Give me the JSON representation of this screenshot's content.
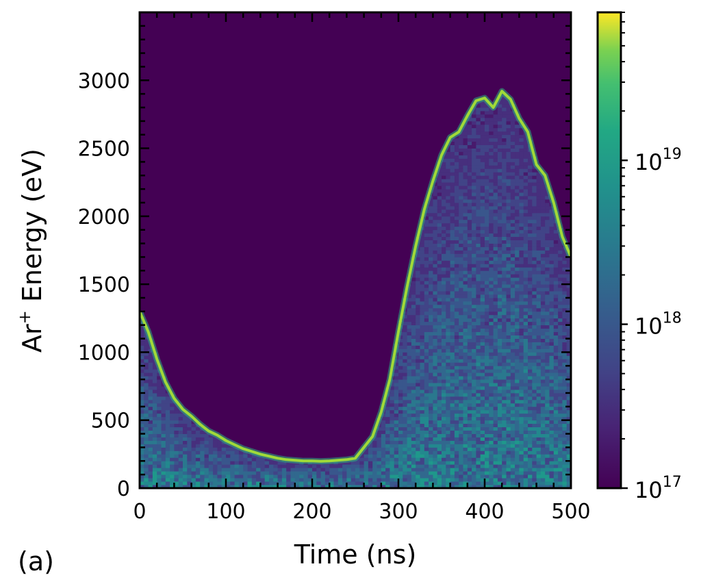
{
  "panel_label": "(a)",
  "chart_data": {
    "type": "heatmap",
    "title": "",
    "xlabel": "Time (ns)",
    "ylabel_base": "Ar",
    "ylabel_sup": "+",
    "ylabel_rest": " Energy (eV)",
    "xlim": [
      0,
      500
    ],
    "ylim": [
      0,
      3500
    ],
    "xticks": [
      0,
      100,
      200,
      300,
      400,
      500
    ],
    "yticks": [
      0,
      500,
      1000,
      1500,
      2000,
      2500,
      3000
    ],
    "xtick_labels": [
      "0",
      "100",
      "200",
      "300",
      "400",
      "500"
    ],
    "ytick_labels": [
      "0",
      "500",
      "1000",
      "1500",
      "2000",
      "2500",
      "3000"
    ],
    "colormap": "viridis",
    "color_scale": "log",
    "color_range": [
      1e+17,
      8e+19
    ],
    "colorbar_ticks": [
      {
        "value": 1e+17,
        "base": "10",
        "exp": "17"
      },
      {
        "value": 1e+18,
        "base": "10",
        "exp": "18"
      },
      {
        "value": 1e+19,
        "base": "10",
        "exp": "19"
      }
    ],
    "peak_energy_curve": {
      "time": [
        0,
        10,
        20,
        30,
        40,
        50,
        60,
        70,
        80,
        90,
        100,
        110,
        120,
        130,
        140,
        150,
        160,
        170,
        180,
        190,
        200,
        210,
        220,
        230,
        240,
        250,
        260,
        270,
        280,
        290,
        300,
        310,
        320,
        330,
        340,
        350,
        360,
        370,
        380,
        390,
        400,
        410,
        420,
        430,
        440,
        450,
        460,
        470,
        480,
        490,
        500
      ],
      "energy": [
        1300,
        1150,
        950,
        780,
        660,
        580,
        530,
        470,
        420,
        390,
        350,
        320,
        290,
        270,
        250,
        235,
        220,
        210,
        205,
        200,
        200,
        198,
        200,
        205,
        210,
        220,
        300,
        380,
        560,
        800,
        1150,
        1480,
        1780,
        2050,
        2260,
        2450,
        2580,
        2620,
        2740,
        2850,
        2870,
        2800,
        2920,
        2860,
        2720,
        2620,
        2380,
        2300,
        2100,
        1850,
        1700
      ]
    },
    "grid": false,
    "legend": "none"
  }
}
